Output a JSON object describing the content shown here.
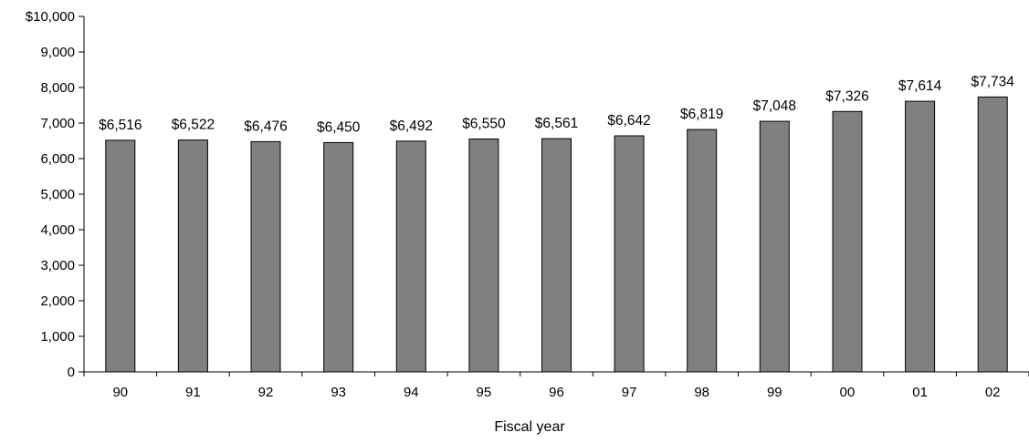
{
  "chart_data": {
    "type": "bar",
    "title": "",
    "xlabel": "Fiscal year",
    "ylabel": "",
    "categories": [
      "90",
      "91",
      "92",
      "93",
      "94",
      "95",
      "96",
      "97",
      "98",
      "99",
      "00",
      "01",
      "02"
    ],
    "values": [
      6516,
      6522,
      6476,
      6450,
      6492,
      6550,
      6561,
      6642,
      6819,
      7048,
      7326,
      7614,
      7734
    ],
    "data_labels": [
      "$6,516",
      "$6,522",
      "$6,476",
      "$6,450",
      "$6,492",
      "$6,550",
      "$6,561",
      "$6,642",
      "$6,819",
      "$7,048",
      "$7,326",
      "$7,614",
      "$7,734"
    ],
    "ylim": [
      0,
      10000
    ],
    "yticks": [
      0,
      1000,
      2000,
      3000,
      4000,
      5000,
      6000,
      7000,
      8000,
      9000,
      10000
    ],
    "ytick_labels": [
      "0",
      "1,000",
      "2,000",
      "3,000",
      "4,000",
      "5,000",
      "6,000",
      "7,000",
      "8,000",
      "9,000",
      "$10,000"
    ],
    "grid": false,
    "legend": "none",
    "colors": {
      "bar_fill": "#808080",
      "bar_stroke": "#000000",
      "axis": "#000000"
    }
  }
}
